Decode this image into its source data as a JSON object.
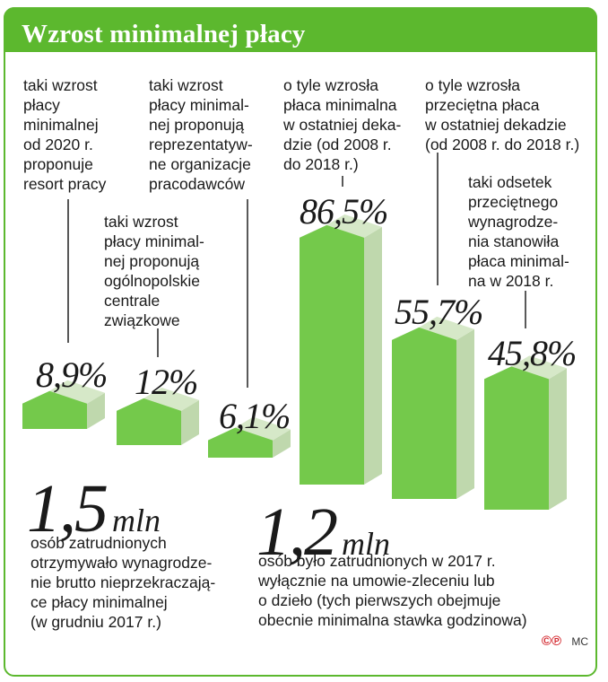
{
  "header": {
    "title": "Wzrost minimalnej płacy"
  },
  "chart_data": {
    "type": "bar",
    "categories": [
      "taki wzrost\npłacy\nminimalnej\nod 2020 r.\nproponuje\nresort pracy",
      "taki wzrost\npłacy minimal-\nnej proponują\nogólnopolskie\ncentrale\nzwiązkowe",
      "taki wzrost\npłacy minimal-\nnej proponują\nreprezentatyw-\nne organizacje\npracodawców",
      "o tyle wzrosła\npłaca minimalna\nw ostatniej deka-\ndzie (od 2008 r.\ndo 2018 r.)",
      "o tyle wzrosła\nprzeciętna płaca\nw ostatniej dekadzie\n(od 2008 r. do 2018 r.)",
      "taki odsetek\nprzeciętnego\nwynagrodze-\nnia stanowiła\npłaca minimal-\nna w 2018 r."
    ],
    "values": [
      8.9,
      12,
      6.1,
      86.5,
      55.7,
      45.8
    ],
    "labels": [
      "8,9%",
      "12%",
      "6,1%",
      "86,5%",
      "55,7%",
      "45,8%"
    ],
    "colors": {
      "front": "#74c94b",
      "side": "#bfd8ad",
      "top": "#d6e8c8",
      "accent": "#5cb82e"
    }
  },
  "stats": [
    {
      "value": "1,5",
      "unit": "mln",
      "text": "osób zatrudnionych\notrzymywało wynagrodze-\nnie brutto nieprzekraczają-\nce płacy minimalnej\n(w grudniu 2017 r.)"
    },
    {
      "value": "1,2",
      "unit": "mln",
      "text": "osób było zatrudnionych w 2017 r.\nwyłącznie na umowie-zleceniu lub\no dzieło (tych pierwszych obejmuje\nobecnie minimalna stawka godzinowa)"
    }
  ],
  "footer": {
    "logo": "©℗",
    "author": "MC"
  }
}
